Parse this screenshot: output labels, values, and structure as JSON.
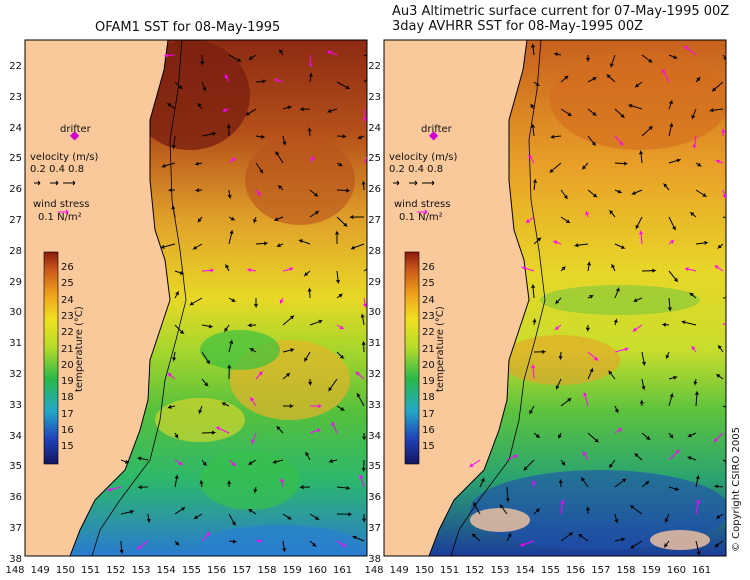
{
  "left_panel": {
    "title": "OFAM1 SST for 08-May-1995",
    "legend": {
      "drifter": "drifter",
      "velocity_label": "velocity (m/s)",
      "velocity_values": "0.2 0.4 0.8",
      "wind_stress_label": "wind stress",
      "wind_stress_value": "0.1 N/m²"
    }
  },
  "right_panel": {
    "title_line1": "Au3 Altimetric surface current for 07-May-1995 00Z",
    "title_line2": "3day AVHRR SST for 08-May-1995 00Z",
    "legend": {
      "drifter": "drifter",
      "velocity_label": "velocity (m/s)",
      "velocity_values": "0.2 0.4 0.8",
      "wind_stress_label": "wind stress",
      "wind_stress_value": "0.1 N/m²"
    }
  },
  "colorbar": {
    "label": "temperature (°C)",
    "ticks": [
      "26",
      "25",
      "24",
      "23",
      "22",
      "21",
      "20",
      "19",
      "18",
      "17",
      "16",
      "15"
    ]
  },
  "latitude_labels": [
    "22",
    "23",
    "24",
    "25",
    "26",
    "27",
    "28",
    "29",
    "30",
    "31",
    "32",
    "33",
    "34",
    "35",
    "36",
    "37",
    "38"
  ],
  "longitude_labels": [
    "148",
    "149",
    "150",
    "151",
    "152",
    "153",
    "154",
    "155",
    "156",
    "157",
    "158",
    "159",
    "160",
    "161"
  ],
  "copyright": "© Copyright CSIRO 2005",
  "colors": {
    "land": "#f9c89b",
    "warm": "#a23410",
    "mid": "#e9d22a",
    "cool": "#2aa84a",
    "cold": "#1c3c9a",
    "current_arrow": "#000000",
    "wind_arrow": "#ff00ff"
  }
}
